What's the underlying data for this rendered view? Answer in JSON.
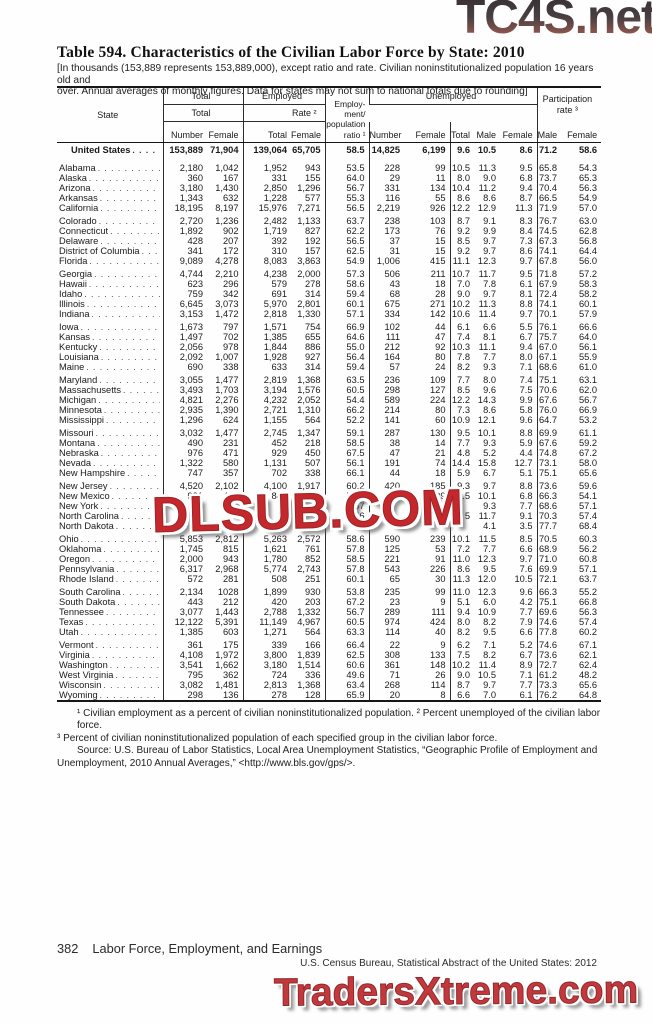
{
  "watermarks": {
    "top": "TC4S.net",
    "middle": "DLSUB.COM",
    "bottom": "TradersXtreme.com"
  },
  "title": "Table 594. Characteristics of the Civilian Labor Force by State: 2010",
  "note_lines": [
    "[In thousands (153,889 represents 153,889,000), except ratio and rate. Civilian noninstitutionalized population 16 years old and",
    "over. Annual averages of monthly figures. Data for states may not sum to national totals due to rounding]"
  ],
  "table": {
    "header": {
      "state": "State",
      "total": "Total",
      "employed": "Employed",
      "emp_pop_lines": [
        "Employ-",
        "ment/",
        "population"
      ],
      "ratio_label": "ratio ¹",
      "unemployed": "Unemployed",
      "unemp_total": "Total",
      "rate": "Rate ²",
      "participation_lines": [
        "Participation",
        "rate ³"
      ],
      "sub": [
        "Number",
        "Female",
        "Total",
        "Female",
        "Number",
        "Female",
        "Total",
        "Male",
        "Female",
        "Male",
        "Female"
      ]
    },
    "us_row": {
      "state": "United States",
      "cells": [
        "153,889",
        "71,904",
        "139,064",
        "65,705",
        "58.5",
        "14,825",
        "6,199",
        "9.6",
        "10.5",
        "8.6",
        "71.2",
        "58.6"
      ]
    },
    "groups": [
      [
        {
          "state": "Alabama",
          "cells": [
            "2,180",
            "1,042",
            "1,952",
            "943",
            "53.5",
            "228",
            "99",
            "10.5",
            "11.3",
            "9.5",
            "65.8",
            "54.3"
          ]
        },
        {
          "state": "Alaska",
          "cells": [
            "360",
            "167",
            "331",
            "155",
            "64.0",
            "29",
            "11",
            "8.0",
            "9.0",
            "6.8",
            "73.7",
            "65.3"
          ]
        },
        {
          "state": "Arizona",
          "cells": [
            "3,180",
            "1,430",
            "2,850",
            "1,296",
            "56.7",
            "331",
            "134",
            "10.4",
            "11.2",
            "9.4",
            "70.4",
            "56.3"
          ]
        },
        {
          "state": "Arkansas",
          "cells": [
            "1,343",
            "632",
            "1,228",
            "577",
            "55.3",
            "116",
            "55",
            "8.6",
            "8.6",
            "8.7",
            "66.5",
            "54.9"
          ]
        },
        {
          "state": "California",
          "cells": [
            "18,195",
            "8,197",
            "15,976",
            "7,271",
            "56.5",
            "2,219",
            "926",
            "12.2",
            "12.9",
            "11.3",
            "71.9",
            "57.0"
          ]
        }
      ],
      [
        {
          "state": "Colorado",
          "cells": [
            "2,720",
            "1,236",
            "2,482",
            "1,133",
            "63.7",
            "238",
            "103",
            "8.7",
            "9.1",
            "8.3",
            "76.7",
            "63.0"
          ]
        },
        {
          "state": "Connecticut",
          "cells": [
            "1,892",
            "902",
            "1,719",
            "827",
            "62.2",
            "173",
            "76",
            "9.2",
            "9.9",
            "8.4",
            "74.5",
            "62.8"
          ]
        },
        {
          "state": "Delaware",
          "cells": [
            "428",
            "207",
            "392",
            "192",
            "56.5",
            "37",
            "15",
            "8.5",
            "9.7",
            "7.3",
            "67.3",
            "56.8"
          ]
        },
        {
          "state": "District of Columbia",
          "cells": [
            "341",
            "172",
            "310",
            "157",
            "62.5",
            "31",
            "15",
            "9.2",
            "9.7",
            "8.6",
            "74.1",
            "64.4"
          ]
        },
        {
          "state": "Florida",
          "cells": [
            "9,089",
            "4,278",
            "8,083",
            "3,863",
            "54.9",
            "1,006",
            "415",
            "11.1",
            "12.3",
            "9.7",
            "67.8",
            "56.0"
          ]
        }
      ],
      [
        {
          "state": "Georgia",
          "cells": [
            "4,744",
            "2,210",
            "4,238",
            "2,000",
            "57.3",
            "506",
            "211",
            "10.7",
            "11.7",
            "9.5",
            "71.8",
            "57.2"
          ]
        },
        {
          "state": "Hawaii",
          "cells": [
            "623",
            "296",
            "579",
            "278",
            "58.6",
            "43",
            "18",
            "7.0",
            "7.8",
            "6.1",
            "67.9",
            "58.3"
          ]
        },
        {
          "state": "Idaho",
          "cells": [
            "759",
            "342",
            "691",
            "314",
            "59.4",
            "68",
            "28",
            "9.0",
            "9.7",
            "8.1",
            "72.4",
            "58.2"
          ]
        },
        {
          "state": "Illinois",
          "cells": [
            "6,645",
            "3,073",
            "5,970",
            "2,801",
            "60.1",
            "675",
            "271",
            "10.2",
            "11.3",
            "8.8",
            "74.1",
            "60.1"
          ]
        },
        {
          "state": "Indiana",
          "cells": [
            "3,153",
            "1,472",
            "2,818",
            "1,330",
            "57.1",
            "334",
            "142",
            "10.6",
            "11.4",
            "9.7",
            "70.1",
            "57.9"
          ]
        }
      ],
      [
        {
          "state": "Iowa",
          "cells": [
            "1,673",
            "797",
            "1,571",
            "754",
            "66.9",
            "102",
            "44",
            "6.1",
            "6.6",
            "5.5",
            "76.1",
            "66.6"
          ]
        },
        {
          "state": "Kansas",
          "cells": [
            "1,497",
            "702",
            "1,385",
            "655",
            "64.6",
            "111",
            "47",
            "7.4",
            "8.1",
            "6.7",
            "75.7",
            "64.0"
          ]
        },
        {
          "state": "Kentucky",
          "cells": [
            "2,056",
            "978",
            "1,844",
            "886",
            "55.0",
            "212",
            "92",
            "10.3",
            "11.1",
            "9.4",
            "67.0",
            "56.1"
          ]
        },
        {
          "state": "Louisiana",
          "cells": [
            "2,092",
            "1,007",
            "1,928",
            "927",
            "56.4",
            "164",
            "80",
            "7.8",
            "7.7",
            "8.0",
            "67.1",
            "55.9"
          ]
        },
        {
          "state": "Maine",
          "cells": [
            "690",
            "338",
            "633",
            "314",
            "59.4",
            "57",
            "24",
            "8.2",
            "9.3",
            "7.1",
            "68.6",
            "61.0"
          ]
        }
      ],
      [
        {
          "state": "Maryland",
          "cells": [
            "3,055",
            "1,477",
            "2,819",
            "1,368",
            "63.5",
            "236",
            "109",
            "7.7",
            "8.0",
            "7.4",
            "75.1",
            "63.1"
          ]
        },
        {
          "state": "Massachusetts",
          "cells": [
            "3,493",
            "1,703",
            "3,194",
            "1,576",
            "60.5",
            "298",
            "127",
            "8.5",
            "9.6",
            "7.5",
            "70.6",
            "62.0"
          ]
        },
        {
          "state": "Michigan",
          "cells": [
            "4,821",
            "2,276",
            "4,232",
            "2,052",
            "54.4",
            "589",
            "224",
            "12.2",
            "14.3",
            "9.9",
            "67.6",
            "56.7"
          ]
        },
        {
          "state": "Minnesota",
          "cells": [
            "2,935",
            "1,390",
            "2,721",
            "1,310",
            "66.2",
            "214",
            "80",
            "7.3",
            "8.6",
            "5.8",
            "76.0",
            "66.9"
          ]
        },
        {
          "state": "Mississippi",
          "cells": [
            "1,296",
            "624",
            "1,155",
            "564",
            "52.2",
            "141",
            "60",
            "10.9",
            "12.1",
            "9.6",
            "64.7",
            "53.2"
          ]
        }
      ],
      [
        {
          "state": "Missouri",
          "cells": [
            "3,032",
            "1,477",
            "2,745",
            "1,347",
            "59.1",
            "287",
            "130",
            "9.5",
            "10.1",
            "8.8",
            "69.9",
            "61.1"
          ]
        },
        {
          "state": "Montana",
          "cells": [
            "490",
            "231",
            "452",
            "218",
            "58.5",
            "38",
            "14",
            "7.7",
            "9.3",
            "5.9",
            "67.6",
            "59.2"
          ]
        },
        {
          "state": "Nebraska",
          "cells": [
            "976",
            "471",
            "929",
            "450",
            "67.5",
            "47",
            "21",
            "4.8",
            "5.2",
            "4.4",
            "74.8",
            "67.2"
          ]
        },
        {
          "state": "Nevada",
          "cells": [
            "1,322",
            "580",
            "1,131",
            "507",
            "56.1",
            "191",
            "74",
            "14.4",
            "15.8",
            "12.7",
            "73.1",
            "58.0"
          ]
        },
        {
          "state": "New Hampshire",
          "cells": [
            "747",
            "357",
            "702",
            "338",
            "66.1",
            "44",
            "18",
            "5.9",
            "6.7",
            "5.1",
            "75.1",
            "65.6"
          ]
        }
      ],
      [
        {
          "state": "New Jersey",
          "cells": [
            "4,520",
            "2,102",
            "4,100",
            "1,917",
            "60.2",
            "420",
            "185",
            "9.3",
            "9.7",
            "8.8",
            "73.6",
            "59.6"
          ]
        },
        {
          "state": "New Mexico",
          "cells": [
            "921",
            "429",
            "843",
            "400",
            "54.9",
            "79",
            "29",
            "8.5",
            "10.1",
            "6.8",
            "66.3",
            "54.1"
          ]
        },
        {
          "state": "New York",
          "cells": [
            "9,",
            "",
            "",
            "",
            "57",
            "",
            "",
            "",
            "9.3",
            "7.7",
            "68.6",
            "57.1"
          ]
        },
        {
          "state": "North Carolina",
          "cells": [
            "4,5",
            "",
            "",
            "",
            "56",
            "",
            "",
            "5",
            "11.7",
            "9.1",
            "70.3",
            "57.4"
          ]
        },
        {
          "state": "North Dakota",
          "cells": [
            "",
            "",
            "",
            "",
            "",
            "",
            "",
            "",
            "4.1",
            "3.5",
            "77.7",
            "68.4"
          ]
        }
      ],
      [
        {
          "state": "Ohio",
          "cells": [
            "5,853",
            "2,812",
            "5,263",
            "2,572",
            "58.6",
            "590",
            "239",
            "10.1",
            "11.5",
            "8.5",
            "70.5",
            "60.3"
          ]
        },
        {
          "state": "Oklahoma",
          "cells": [
            "1,745",
            "815",
            "1,621",
            "761",
            "57.8",
            "125",
            "53",
            "7.2",
            "7.7",
            "6.6",
            "68.9",
            "56.2"
          ]
        },
        {
          "state": "Oregon",
          "cells": [
            "2,000",
            "943",
            "1,780",
            "852",
            "58.5",
            "221",
            "91",
            "11.0",
            "12.3",
            "9.7",
            "71.0",
            "60.8"
          ]
        },
        {
          "state": "Pennsylvania",
          "cells": [
            "6,317",
            "2,968",
            "5,774",
            "2,743",
            "57.8",
            "543",
            "226",
            "8.6",
            "9.5",
            "7.6",
            "69.9",
            "57.1"
          ]
        },
        {
          "state": "Rhode Island",
          "cells": [
            "572",
            "281",
            "508",
            "251",
            "60.1",
            "65",
            "30",
            "11.3",
            "12.0",
            "10.5",
            "72.1",
            "63.7"
          ]
        }
      ],
      [
        {
          "state": "South Carolina",
          "cells": [
            "2,134",
            "1028",
            "1,899",
            "930",
            "53.8",
            "235",
            "99",
            "11.0",
            "12.3",
            "9.6",
            "66.3",
            "55.2"
          ]
        },
        {
          "state": "South Dakota",
          "cells": [
            "443",
            "212",
            "420",
            "203",
            "67.2",
            "23",
            "9",
            "5.1",
            "6.0",
            "4.2",
            "75.1",
            "66.8"
          ]
        },
        {
          "state": "Tennessee",
          "cells": [
            "3,077",
            "1,443",
            "2,788",
            "1,332",
            "56.7",
            "289",
            "111",
            "9.4",
            "10.9",
            "7.7",
            "69.6",
            "56.3"
          ]
        },
        {
          "state": "Texas",
          "cells": [
            "12,122",
            "5,391",
            "11,149",
            "4,967",
            "60.5",
            "974",
            "424",
            "8.0",
            "8.2",
            "7.9",
            "74.6",
            "57.4"
          ]
        },
        {
          "state": "Utah",
          "cells": [
            "1,385",
            "603",
            "1,271",
            "564",
            "63.3",
            "114",
            "40",
            "8.2",
            "9.5",
            "6.6",
            "77.8",
            "60.2"
          ]
        }
      ],
      [
        {
          "state": "Vermont",
          "cells": [
            "361",
            "175",
            "339",
            "166",
            "66.4",
            "22",
            "9",
            "6.2",
            "7.1",
            "5.2",
            "74.6",
            "67.1"
          ]
        },
        {
          "state": "Virginia",
          "cells": [
            "4,108",
            "1,972",
            "3,800",
            "1,839",
            "62.5",
            "308",
            "133",
            "7.5",
            "8.2",
            "6.7",
            "73.6",
            "62.1"
          ]
        },
        {
          "state": "Washington",
          "cells": [
            "3,541",
            "1,662",
            "3,180",
            "1,514",
            "60.6",
            "361",
            "148",
            "10.2",
            "11.4",
            "8.9",
            "72.7",
            "62.4"
          ]
        },
        {
          "state": "West Virginia",
          "cells": [
            "795",
            "362",
            "724",
            "336",
            "49.6",
            "71",
            "26",
            "9.0",
            "10.5",
            "7.1",
            "61.2",
            "48.2"
          ]
        },
        {
          "state": "Wisconsin",
          "cells": [
            "3,082",
            "1,481",
            "2,813",
            "1,368",
            "63.4",
            "268",
            "114",
            "8.7",
            "9.7",
            "7.7",
            "73.3",
            "65.6"
          ]
        },
        {
          "state": "Wyoming",
          "cells": [
            "298",
            "136",
            "278",
            "128",
            "65.9",
            "20",
            "8",
            "6.6",
            "7.0",
            "6.1",
            "76.2",
            "64.8"
          ]
        }
      ]
    ]
  },
  "footnotes": [
    "¹ Civilian employment as a percent of civilian noninstitutionalized population. ² Percent unemployed of the civilian labor force.",
    "³ Percent of civilian noninstitutionalized population of each specified group in the civilian labor force.",
    "Source: U.S. Bureau of Labor Statistics, Local Area Unemployment Statistics, “Geographic Profile of Employment and",
    "Unemployment, 2010 Annual Averages,” <http://www.bls.gov/gps/>."
  ],
  "footer": {
    "page_number": "382",
    "section": "Labor Force, Employment, and Earnings",
    "source_line": "U.S. Census Bureau, Statistical Abstract of the United States: 2012"
  }
}
